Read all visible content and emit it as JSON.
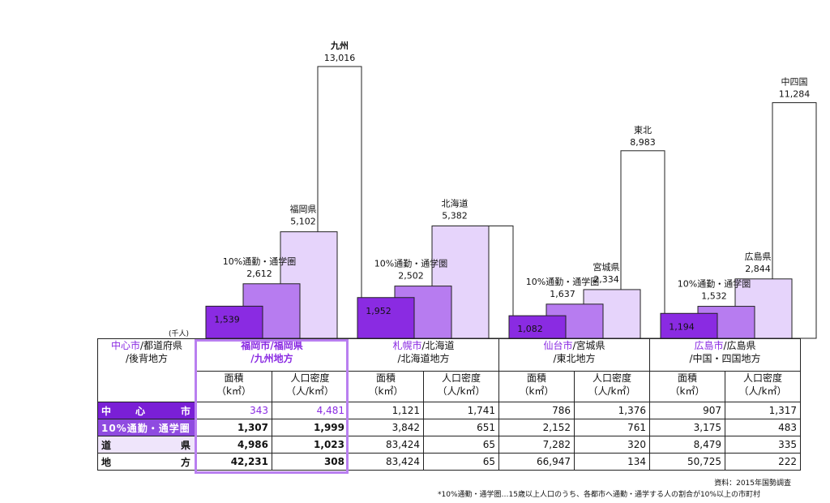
{
  "chart_data": {
    "type": "bar",
    "unit_label": "(千人)",
    "groups": [
      {
        "key": "fukuoka",
        "bars": [
          {
            "kind": "city",
            "label": "",
            "value": 1539,
            "value_text": "1,539"
          },
          {
            "kind": "commute",
            "label": "10%通勤・通学圏",
            "value": 2612,
            "value_text": "2,612"
          },
          {
            "kind": "pref",
            "label": "福岡県",
            "value": 5102,
            "value_text": "5,102"
          },
          {
            "kind": "region",
            "label": "九州",
            "value": 13016,
            "value_text": "13,016"
          }
        ]
      },
      {
        "key": "sapporo",
        "bars": [
          {
            "kind": "city",
            "label": "",
            "value": 1952,
            "value_text": "1,952"
          },
          {
            "kind": "commute",
            "label": "10%通勤・通学圏",
            "value": 2502,
            "value_text": "2,502"
          },
          {
            "kind": "pref",
            "label": "北海道",
            "value": 5382,
            "value_text": "5,382"
          },
          {
            "kind": "region",
            "label": "",
            "value": 5382,
            "value_text": ""
          }
        ]
      },
      {
        "key": "sendai",
        "bars": [
          {
            "kind": "city",
            "label": "",
            "value": 1082,
            "value_text": "1,082"
          },
          {
            "kind": "commute",
            "label": "10%通勤・通学圏",
            "value": 1637,
            "value_text": "1,637"
          },
          {
            "kind": "pref",
            "label": "宮城県",
            "value": 2334,
            "value_text": "2,334"
          },
          {
            "kind": "region",
            "label": "東北",
            "value": 8983,
            "value_text": "8,983"
          }
        ]
      },
      {
        "key": "hiroshima",
        "bars": [
          {
            "kind": "city",
            "label": "",
            "value": 1194,
            "value_text": "1,194"
          },
          {
            "kind": "commute",
            "label": "10%通勤・通学圏",
            "value": 1532,
            "value_text": "1,532"
          },
          {
            "kind": "pref",
            "label": "広島県",
            "value": 2844,
            "value_text": "2,844"
          },
          {
            "kind": "region",
            "label": "中四国",
            "value": 11284,
            "value_text": "11,284"
          }
        ]
      }
    ],
    "colors": {
      "city": "#8a2be2",
      "commute": "#b77cf0",
      "pref": "#e6d4fb",
      "region": "#ffffff",
      "border": "#222222"
    }
  },
  "table": {
    "corner_line1_city": "中心市",
    "corner_line1_rest": "/都道府県",
    "corner_line2": "/後背地方",
    "columns": [
      {
        "city": "福岡市",
        "pref": "/福岡県",
        "region": "/九州地方",
        "area": "面積",
        "area_unit": "（k㎡）",
        "density": "人口密度",
        "density_unit": "（人/k㎡）"
      },
      {
        "city": "札幌市",
        "pref": "/北海道",
        "region": "/北海道地方",
        "area": "面積",
        "area_unit": "（k㎡）",
        "density": "人口密度",
        "density_unit": "（人/k㎡）"
      },
      {
        "city": "仙台市",
        "pref": "/宮城県",
        "region": "/東北地方",
        "area": "面積",
        "area_unit": "（k㎡）",
        "density": "人口密度",
        "density_unit": "（人/k㎡）"
      },
      {
        "city": "広島市",
        "pref": "/広島県",
        "region": "/中国・四国地方",
        "area": "面積",
        "area_unit": "（k㎡）",
        "density": "人口密度",
        "density_unit": "（人/k㎡）"
      }
    ],
    "rows": [
      {
        "label_left": "中　　心",
        "label_right": "市",
        "cells": [
          "343",
          "4,481",
          "1,121",
          "1,741",
          "786",
          "1,376",
          "907",
          "1,317"
        ]
      },
      {
        "label_left": "10%通勤・通学圏",
        "label_right": "",
        "cells": [
          "1,307",
          "1,999",
          "3,842",
          "651",
          "2,152",
          "761",
          "3,175",
          "483"
        ]
      },
      {
        "label_left": "道",
        "label_right": "県",
        "cells": [
          "4,986",
          "1,023",
          "83,424",
          "65",
          "7,282",
          "320",
          "8,479",
          "335"
        ]
      },
      {
        "label_left": "地",
        "label_right": "方",
        "cells": [
          "42,231",
          "308",
          "83,424",
          "65",
          "66,947",
          "134",
          "50,725",
          "222"
        ]
      }
    ]
  },
  "source": "資料：2015年国勢調査",
  "note": "*10%通勤・通学圏…15歳以上人口のうち、各都市へ通勤・通学する人の割合が10%以上の市町村"
}
